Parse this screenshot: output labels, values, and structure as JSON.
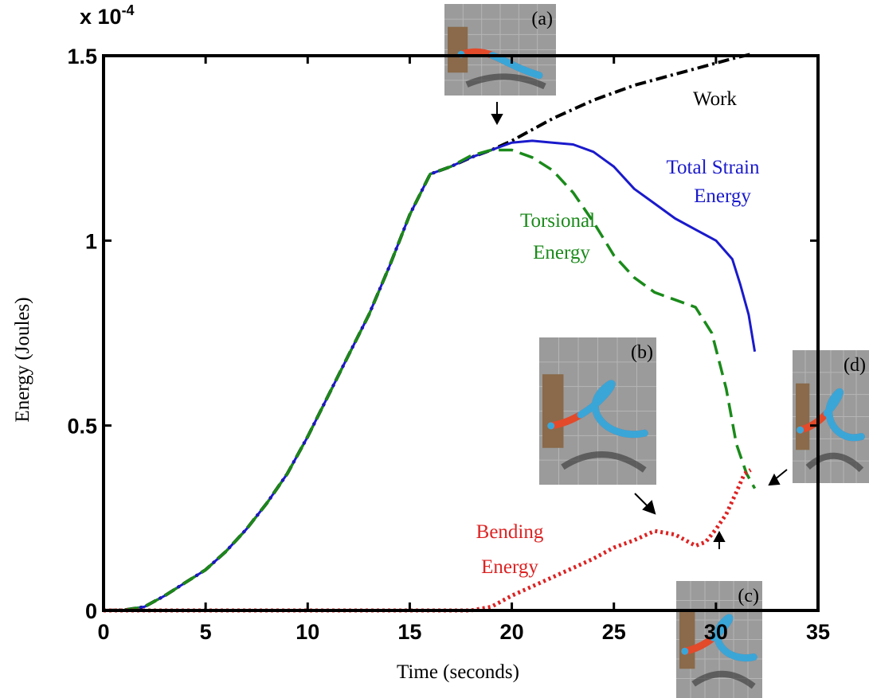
{
  "chart_data": {
    "type": "line",
    "xlabel": "Time (seconds)",
    "ylabel": "Energy (Joules)",
    "exponent_label": "x 10",
    "exponent_power": "-4",
    "xlim": [
      0,
      35
    ],
    "ylim": [
      0,
      1.5
    ],
    "xticks": [
      0,
      5,
      10,
      15,
      20,
      25,
      30,
      35
    ],
    "xtick_labels": [
      "0",
      "5",
      "10",
      "15",
      "20",
      "25",
      "30",
      "35"
    ],
    "yticks": [
      0,
      0.5,
      1,
      1.5
    ],
    "ytick_labels": [
      "0",
      "0.5",
      "1",
      "1.5"
    ],
    "grid": false,
    "series": [
      {
        "name": "Work",
        "color": "#000000",
        "style": "dashdot",
        "points": [
          [
            0,
            0
          ],
          [
            1,
            0.001
          ],
          [
            2,
            0.01
          ],
          [
            3,
            0.04
          ],
          [
            4,
            0.075
          ],
          [
            5,
            0.11
          ],
          [
            6,
            0.16
          ],
          [
            7,
            0.22
          ],
          [
            8,
            0.29
          ],
          [
            9,
            0.37
          ],
          [
            10,
            0.47
          ],
          [
            11,
            0.58
          ],
          [
            12,
            0.69
          ],
          [
            13,
            0.8
          ],
          [
            14,
            0.93
          ],
          [
            15,
            1.07
          ],
          [
            16,
            1.18
          ],
          [
            17,
            1.2
          ],
          [
            18,
            1.225
          ],
          [
            19,
            1.245
          ],
          [
            20,
            1.27
          ],
          [
            21,
            1.3
          ],
          [
            22,
            1.33
          ],
          [
            23,
            1.355
          ],
          [
            24,
            1.38
          ],
          [
            25,
            1.4
          ],
          [
            26,
            1.42
          ],
          [
            27,
            1.435
          ],
          [
            28,
            1.45
          ],
          [
            29,
            1.465
          ],
          [
            30,
            1.48
          ],
          [
            31,
            1.495
          ],
          [
            31.8,
            1.505
          ]
        ]
      },
      {
        "name": "Total Strain Energy",
        "color": "#1a1acc",
        "style": "solid",
        "points": [
          [
            0,
            0
          ],
          [
            1,
            0.001
          ],
          [
            2,
            0.01
          ],
          [
            3,
            0.04
          ],
          [
            4,
            0.075
          ],
          [
            5,
            0.11
          ],
          [
            6,
            0.16
          ],
          [
            7,
            0.22
          ],
          [
            8,
            0.29
          ],
          [
            9,
            0.37
          ],
          [
            10,
            0.47
          ],
          [
            11,
            0.58
          ],
          [
            12,
            0.69
          ],
          [
            13,
            0.8
          ],
          [
            14,
            0.93
          ],
          [
            15,
            1.07
          ],
          [
            16,
            1.18
          ],
          [
            17,
            1.2
          ],
          [
            18,
            1.225
          ],
          [
            19,
            1.245
          ],
          [
            20,
            1.265
          ],
          [
            21,
            1.27
          ],
          [
            22,
            1.265
          ],
          [
            23,
            1.26
          ],
          [
            24,
            1.24
          ],
          [
            25,
            1.2
          ],
          [
            26,
            1.14
          ],
          [
            27,
            1.1
          ],
          [
            28,
            1.06
          ],
          [
            29,
            1.03
          ],
          [
            30,
            1.0
          ],
          [
            30.8,
            0.95
          ],
          [
            31.2,
            0.88
          ],
          [
            31.6,
            0.8
          ],
          [
            31.9,
            0.7
          ]
        ]
      },
      {
        "name": "Torsional Energy",
        "color": "#1a8a1a",
        "style": "dashed",
        "points": [
          [
            0,
            0
          ],
          [
            1,
            0.001
          ],
          [
            2,
            0.01
          ],
          [
            3,
            0.04
          ],
          [
            4,
            0.075
          ],
          [
            5,
            0.11
          ],
          [
            6,
            0.16
          ],
          [
            7,
            0.22
          ],
          [
            8,
            0.29
          ],
          [
            9,
            0.37
          ],
          [
            10,
            0.47
          ],
          [
            11,
            0.58
          ],
          [
            12,
            0.69
          ],
          [
            13,
            0.8
          ],
          [
            14,
            0.93
          ],
          [
            15,
            1.07
          ],
          [
            16,
            1.18
          ],
          [
            17,
            1.2
          ],
          [
            18,
            1.23
          ],
          [
            19,
            1.245
          ],
          [
            20,
            1.245
          ],
          [
            21,
            1.225
          ],
          [
            22,
            1.19
          ],
          [
            23,
            1.13
          ],
          [
            24,
            1.05
          ],
          [
            25,
            0.96
          ],
          [
            26,
            0.9
          ],
          [
            27,
            0.86
          ],
          [
            28,
            0.84
          ],
          [
            29,
            0.82
          ],
          [
            29.8,
            0.75
          ],
          [
            30.5,
            0.6
          ],
          [
            31,
            0.45
          ],
          [
            31.5,
            0.37
          ],
          [
            31.9,
            0.33
          ]
        ]
      },
      {
        "name": "Bending Energy",
        "color": "#dd2222",
        "style": "dotted",
        "points": [
          [
            0,
            0
          ],
          [
            2,
            0
          ],
          [
            4,
            0
          ],
          [
            6,
            0
          ],
          [
            8,
            0
          ],
          [
            10,
            0
          ],
          [
            12,
            0
          ],
          [
            14,
            0
          ],
          [
            16,
            0
          ],
          [
            18,
            0
          ],
          [
            19,
            0.01
          ],
          [
            20,
            0.04
          ],
          [
            21,
            0.065
          ],
          [
            22,
            0.09
          ],
          [
            23,
            0.115
          ],
          [
            24,
            0.14
          ],
          [
            25,
            0.17
          ],
          [
            26,
            0.19
          ],
          [
            27,
            0.215
          ],
          [
            28,
            0.205
          ],
          [
            28.5,
            0.19
          ],
          [
            29,
            0.175
          ],
          [
            29.5,
            0.185
          ],
          [
            30,
            0.22
          ],
          [
            30.5,
            0.26
          ],
          [
            31,
            0.32
          ],
          [
            31.4,
            0.37
          ],
          [
            31.7,
            0.38
          ]
        ]
      }
    ],
    "annotations": [
      {
        "text": "Work",
        "color": "#000000"
      },
      {
        "lines": [
          "Total Strain",
          "Energy"
        ],
        "color": "#1a1acc"
      },
      {
        "lines": [
          "Torsional",
          "Energy"
        ],
        "color": "#1a8a1a"
      },
      {
        "lines": [
          "Bending",
          "Energy"
        ],
        "color": "#dd2222"
      }
    ],
    "insets": [
      "(a)",
      "(b)",
      "(c)",
      "(d)"
    ]
  }
}
